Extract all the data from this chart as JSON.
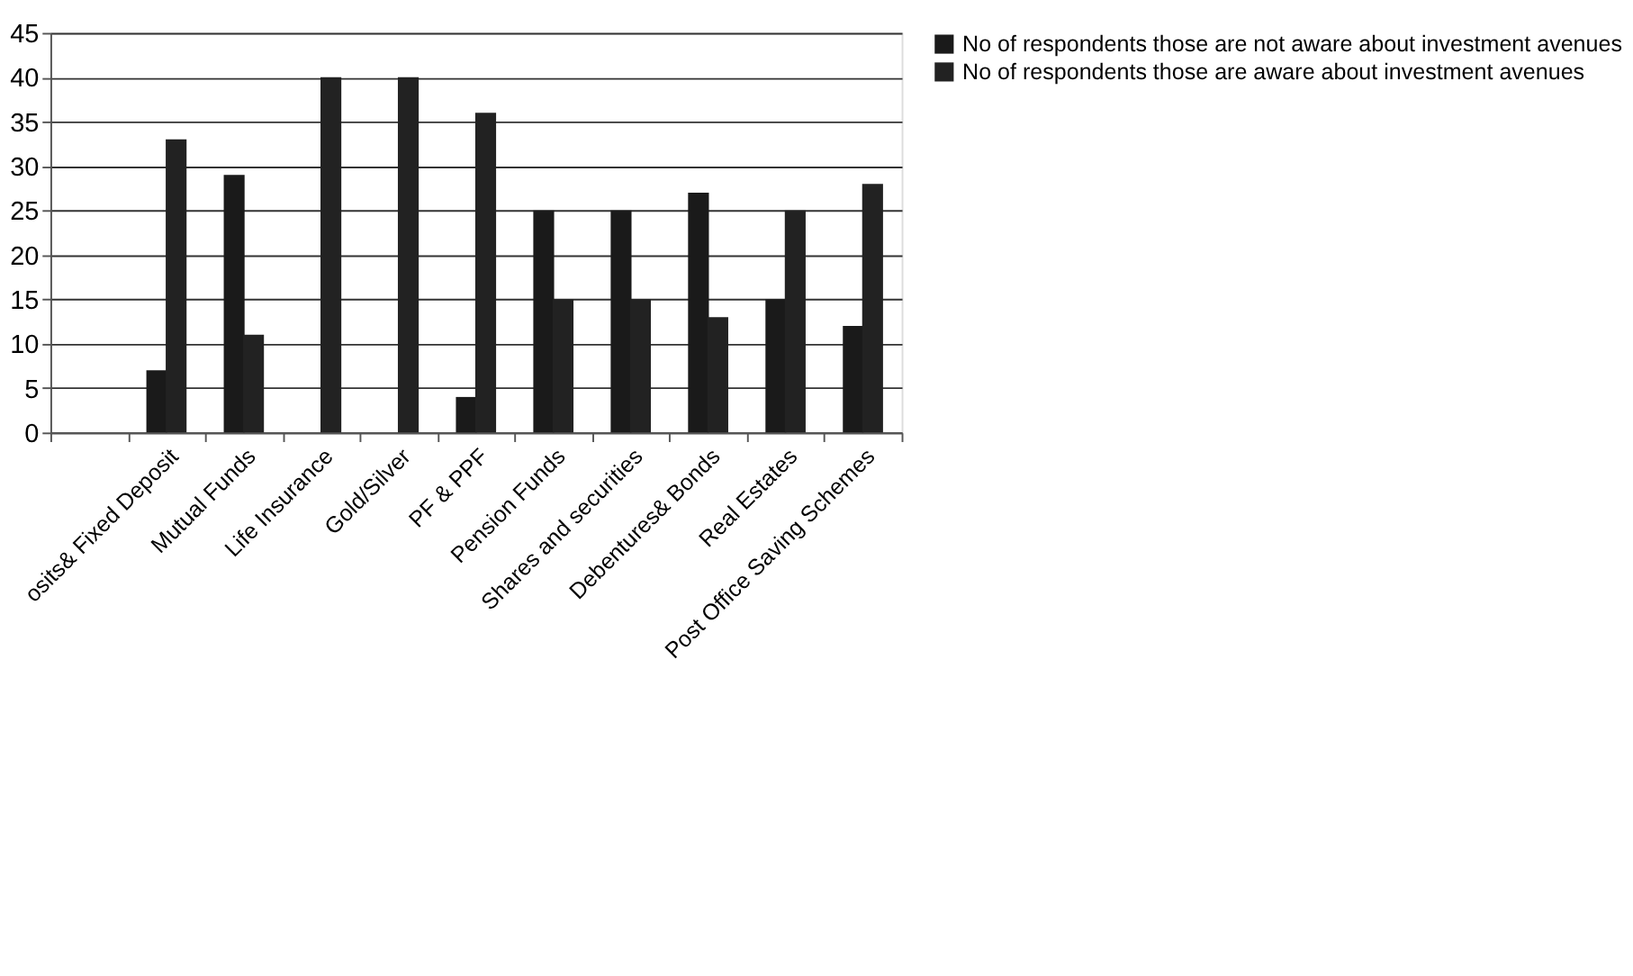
{
  "chart_data": {
    "type": "bar",
    "categories": [
      null,
      "osits& Fixed Deposit",
      "Mutual Funds",
      "Life Insurance",
      "Gold/Silver",
      "PF & PPF",
      "Pension Funds",
      "Shares and securities",
      "Debentures& Bonds",
      "Real Estates",
      "Post Office Saving Schemes"
    ],
    "series": [
      {
        "name": "No of respondents those are not aware about investment avenues",
        "color": "#1a1a1a",
        "values": [
          null,
          7,
          29,
          null,
          null,
          4,
          25,
          25,
          27,
          15,
          12
        ]
      },
      {
        "name": "No of respondents those are  aware about investment avenues",
        "color": "#222222",
        "values": [
          null,
          33,
          11,
          40,
          40,
          36,
          15,
          15,
          13,
          25,
          28
        ]
      }
    ],
    "ylim": [
      0,
      45
    ],
    "yticks": [
      0,
      5,
      10,
      15,
      20,
      25,
      30,
      35,
      40,
      45
    ],
    "grid": "y",
    "legend": "right"
  }
}
